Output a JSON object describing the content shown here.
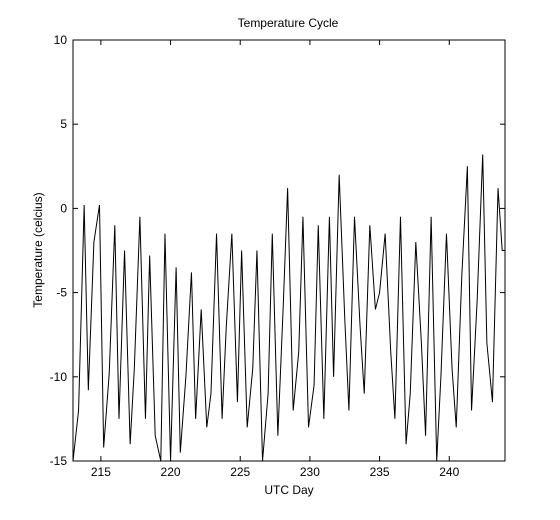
{
  "chart_data": {
    "type": "line",
    "title": "Temperature Cycle",
    "xlabel": "UTC Day",
    "ylabel": "Temperature (celcius)",
    "xlim": [
      213,
      244
    ],
    "ylim": [
      -15,
      10
    ],
    "xticks": [
      215,
      220,
      225,
      230,
      235,
      240
    ],
    "yticks": [
      -15,
      -10,
      -5,
      0,
      5,
      10
    ],
    "grid": false,
    "legend": "none",
    "line_color": "#000000",
    "series": [
      {
        "x": [
          213.0,
          213.4,
          213.8,
          214.1,
          214.5,
          214.9,
          215.2,
          215.6,
          216.0,
          216.3,
          216.7,
          217.1,
          217.4,
          217.8,
          218.2,
          218.5,
          218.9,
          219.3,
          219.6,
          220.0,
          220.4,
          220.7,
          221.1,
          221.5,
          221.8,
          222.2,
          222.6,
          222.9,
          223.3,
          223.7,
          224.0,
          224.4,
          224.8,
          225.1,
          225.5,
          225.9,
          226.2,
          226.6,
          227.0,
          227.3,
          227.7,
          228.1,
          228.4,
          228.8,
          229.2,
          229.5,
          229.9,
          230.3,
          230.6,
          231.0,
          231.4,
          231.7,
          232.1,
          232.5,
          232.8,
          233.2,
          233.6,
          233.9,
          234.3,
          234.7,
          235.0,
          235.4,
          235.8,
          236.1,
          236.5,
          236.9,
          237.2,
          237.6,
          238.0,
          238.3,
          238.7,
          239.1,
          239.4,
          239.8,
          240.2,
          240.5,
          240.9,
          241.3,
          241.6,
          242.0,
          242.4,
          242.7,
          243.1,
          243.5,
          243.8,
          244.0
        ],
        "y": [
          -15.0,
          -12.0,
          0.2,
          -10.8,
          -2.0,
          0.2,
          -14.2,
          -9.8,
          -1.0,
          -12.5,
          -2.5,
          -14.0,
          -9.5,
          -0.5,
          -12.5,
          -2.8,
          -13.5,
          -15.0,
          -1.5,
          -15.0,
          -3.5,
          -14.5,
          -10.0,
          -3.8,
          -12.5,
          -6.0,
          -13.0,
          -11.0,
          -1.5,
          -12.5,
          -7.0,
          -1.5,
          -11.5,
          -2.5,
          -13.0,
          -9.5,
          -2.5,
          -15.0,
          -11.0,
          -1.5,
          -13.5,
          -5.5,
          1.2,
          -12.0,
          -8.5,
          -0.5,
          -13.0,
          -10.5,
          -1.0,
          -12.5,
          -0.5,
          -10.0,
          2.0,
          -6.5,
          -12.0,
          -0.5,
          -7.0,
          -11.0,
          -1.0,
          -6.0,
          -5.0,
          -1.5,
          -8.5,
          -12.5,
          -0.5,
          -14.0,
          -11.0,
          -2.0,
          -8.0,
          -13.5,
          -0.5,
          -15.0,
          -10.0,
          -1.5,
          -9.5,
          -13.0,
          -4.0,
          2.5,
          -12.0,
          -5.5,
          3.2,
          -8.0,
          -11.5,
          1.2,
          -2.5,
          -2.5
        ]
      }
    ]
  }
}
